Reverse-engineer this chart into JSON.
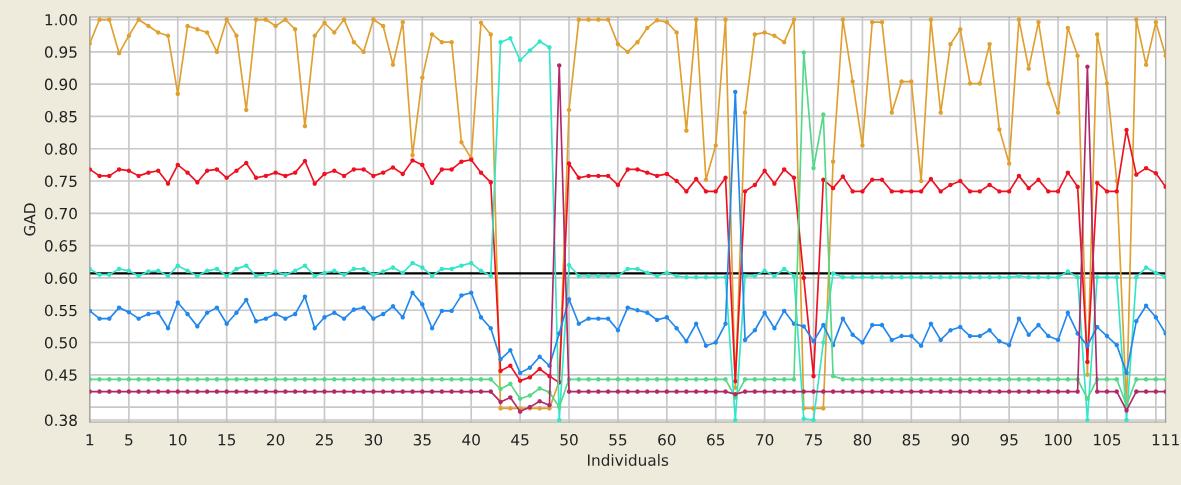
{
  "chart_data": {
    "type": "line",
    "xlabel": "Individuals",
    "ylabel": "GAD",
    "x": [
      1,
      2,
      3,
      4,
      5,
      6,
      7,
      8,
      9,
      10,
      11,
      12,
      13,
      14,
      15,
      16,
      17,
      18,
      19,
      20,
      21,
      22,
      23,
      24,
      25,
      26,
      27,
      28,
      29,
      30,
      31,
      32,
      33,
      34,
      35,
      36,
      37,
      38,
      39,
      40,
      41,
      42,
      43,
      44,
      45,
      46,
      47,
      48,
      49,
      50,
      51,
      52,
      53,
      54,
      55,
      56,
      57,
      58,
      59,
      60,
      61,
      62,
      63,
      64,
      65,
      66,
      67,
      68,
      69,
      70,
      71,
      72,
      73,
      74,
      75,
      76,
      77,
      78,
      79,
      80,
      81,
      82,
      83,
      84,
      85,
      86,
      87,
      88,
      89,
      90,
      91,
      92,
      93,
      94,
      95,
      96,
      97,
      98,
      99,
      100,
      101,
      102,
      103,
      104,
      105,
      106,
      107,
      108,
      109,
      110,
      111
    ],
    "series": [
      {
        "color": "#e0a030",
        "values": [
          0.963,
          1.0,
          1.0,
          0.948,
          0.975,
          1.0,
          0.99,
          0.98,
          0.975,
          0.885,
          0.99,
          0.985,
          0.98,
          0.95,
          1.0,
          0.975,
          0.86,
          1.0,
          1.0,
          0.99,
          1.0,
          0.985,
          0.835,
          0.975,
          0.995,
          0.98,
          1.0,
          0.965,
          0.95,
          1.0,
          0.99,
          0.93,
          0.996,
          0.79,
          0.91,
          0.977,
          0.965,
          0.965,
          0.81,
          0.785,
          0.995,
          0.977,
          0.398,
          0.398,
          0.398,
          0.398,
          0.398,
          0.398,
          0.44,
          0.86,
          1.0,
          1.0,
          1.0,
          1.0,
          0.962,
          0.95,
          0.965,
          0.987,
          0.999,
          0.996,
          0.98,
          0.828,
          1.0,
          0.752,
          0.805,
          1.0,
          0.43,
          0.856,
          0.977,
          0.98,
          0.975,
          0.965,
          1.0,
          0.398,
          0.398,
          0.398,
          0.78,
          1.0,
          0.904,
          0.805,
          0.996,
          0.996,
          0.856,
          0.904,
          0.904,
          0.75,
          1.0,
          0.856,
          0.962,
          0.985,
          0.901,
          0.901,
          0.962,
          0.83,
          0.777,
          1.0,
          0.924,
          0.996,
          0.901,
          0.856,
          0.987,
          0.944,
          0.45,
          0.977,
          0.901,
          0.75,
          0.4,
          1.0,
          0.93,
          0.996,
          0.944
        ]
      },
      {
        "color": "#ee1122",
        "values": [
          0.768,
          0.758,
          0.758,
          0.768,
          0.766,
          0.758,
          0.763,
          0.766,
          0.746,
          0.775,
          0.763,
          0.748,
          0.766,
          0.768,
          0.755,
          0.766,
          0.778,
          0.755,
          0.758,
          0.763,
          0.758,
          0.763,
          0.781,
          0.746,
          0.761,
          0.766,
          0.758,
          0.768,
          0.768,
          0.758,
          0.763,
          0.771,
          0.761,
          0.782,
          0.775,
          0.747,
          0.768,
          0.768,
          0.78,
          0.783,
          0.763,
          0.748,
          0.456,
          0.464,
          0.441,
          0.446,
          0.459,
          0.448,
          0.438,
          0.777,
          0.755,
          0.758,
          0.758,
          0.758,
          0.744,
          0.768,
          0.768,
          0.763,
          0.758,
          0.761,
          0.75,
          0.734,
          0.753,
          0.734,
          0.734,
          0.755,
          0.44,
          0.734,
          0.744,
          0.766,
          0.746,
          0.768,
          0.755,
          0.6,
          0.448,
          0.752,
          0.739,
          0.757,
          0.734,
          0.734,
          0.752,
          0.752,
          0.734,
          0.734,
          0.734,
          0.734,
          0.753,
          0.734,
          0.744,
          0.75,
          0.734,
          0.734,
          0.744,
          0.734,
          0.734,
          0.758,
          0.739,
          0.752,
          0.734,
          0.734,
          0.763,
          0.741,
          0.47,
          0.747,
          0.734,
          0.734,
          0.829,
          0.76,
          0.77,
          0.762,
          0.741
        ]
      },
      {
        "color": "#33e6c8",
        "values": [
          0.614,
          0.605,
          0.605,
          0.614,
          0.611,
          0.603,
          0.61,
          0.611,
          0.603,
          0.619,
          0.611,
          0.603,
          0.611,
          0.614,
          0.603,
          0.614,
          0.619,
          0.603,
          0.605,
          0.61,
          0.605,
          0.611,
          0.619,
          0.603,
          0.608,
          0.611,
          0.605,
          0.614,
          0.614,
          0.605,
          0.61,
          0.616,
          0.608,
          0.623,
          0.616,
          0.603,
          0.614,
          0.614,
          0.619,
          0.623,
          0.611,
          0.603,
          0.965,
          0.971,
          0.937,
          0.952,
          0.966,
          0.957,
          0.38,
          0.62,
          0.603,
          0.603,
          0.603,
          0.603,
          0.603,
          0.614,
          0.614,
          0.608,
          0.603,
          0.608,
          0.603,
          0.601,
          0.601,
          0.601,
          0.601,
          0.601,
          0.38,
          0.603,
          0.603,
          0.611,
          0.603,
          0.614,
          0.603,
          0.382,
          0.38,
          0.5,
          0.607,
          0.601,
          0.601,
          0.601,
          0.601,
          0.601,
          0.601,
          0.601,
          0.601,
          0.601,
          0.601,
          0.601,
          0.601,
          0.601,
          0.601,
          0.601,
          0.601,
          0.601,
          0.601,
          0.603,
          0.601,
          0.601,
          0.601,
          0.601,
          0.61,
          0.601,
          0.38,
          0.601,
          0.601,
          0.601,
          0.38,
          0.601,
          0.616,
          0.608,
          0.601
        ]
      },
      {
        "color": "#2288ee",
        "values": [
          0.549,
          0.537,
          0.537,
          0.554,
          0.547,
          0.537,
          0.544,
          0.546,
          0.522,
          0.562,
          0.544,
          0.525,
          0.546,
          0.554,
          0.529,
          0.546,
          0.566,
          0.533,
          0.537,
          0.544,
          0.537,
          0.544,
          0.571,
          0.522,
          0.539,
          0.546,
          0.537,
          0.551,
          0.554,
          0.537,
          0.544,
          0.556,
          0.539,
          0.577,
          0.559,
          0.522,
          0.549,
          0.549,
          0.573,
          0.577,
          0.539,
          0.522,
          0.474,
          0.488,
          0.453,
          0.461,
          0.478,
          0.464,
          0.514,
          0.567,
          0.529,
          0.537,
          0.537,
          0.537,
          0.519,
          0.554,
          0.55,
          0.546,
          0.535,
          0.539,
          0.522,
          0.502,
          0.529,
          0.495,
          0.5,
          0.529,
          0.888,
          0.504,
          0.519,
          0.546,
          0.522,
          0.549,
          0.529,
          0.525,
          0.502,
          0.527,
          0.496,
          0.537,
          0.512,
          0.5,
          0.527,
          0.527,
          0.504,
          0.51,
          0.51,
          0.495,
          0.529,
          0.504,
          0.519,
          0.524,
          0.51,
          0.51,
          0.519,
          0.502,
          0.496,
          0.537,
          0.512,
          0.527,
          0.51,
          0.504,
          0.546,
          0.514,
          0.495,
          0.524,
          0.51,
          0.496,
          0.453,
          0.533,
          0.557,
          0.539,
          0.514
        ]
      },
      {
        "color": "#55d888",
        "values": [
          0.443,
          0.443,
          0.443,
          0.443,
          0.443,
          0.443,
          0.443,
          0.443,
          0.443,
          0.443,
          0.443,
          0.443,
          0.443,
          0.443,
          0.443,
          0.443,
          0.443,
          0.443,
          0.443,
          0.443,
          0.443,
          0.443,
          0.443,
          0.443,
          0.443,
          0.443,
          0.443,
          0.443,
          0.443,
          0.443,
          0.443,
          0.443,
          0.443,
          0.443,
          0.443,
          0.443,
          0.443,
          0.443,
          0.443,
          0.443,
          0.443,
          0.443,
          0.428,
          0.436,
          0.413,
          0.418,
          0.429,
          0.423,
          0.4,
          0.443,
          0.443,
          0.443,
          0.443,
          0.443,
          0.443,
          0.443,
          0.443,
          0.443,
          0.443,
          0.443,
          0.443,
          0.443,
          0.443,
          0.443,
          0.443,
          0.443,
          0.415,
          0.443,
          0.443,
          0.443,
          0.443,
          0.443,
          0.443,
          0.949,
          0.77,
          0.853,
          0.448,
          0.443,
          0.443,
          0.443,
          0.443,
          0.443,
          0.443,
          0.443,
          0.443,
          0.443,
          0.443,
          0.443,
          0.443,
          0.443,
          0.443,
          0.443,
          0.443,
          0.443,
          0.443,
          0.443,
          0.443,
          0.443,
          0.443,
          0.443,
          0.443,
          0.443,
          0.413,
          0.443,
          0.443,
          0.443,
          0.403,
          0.443,
          0.443,
          0.443,
          0.443
        ]
      },
      {
        "color": "#b02a6a",
        "values": [
          0.424,
          0.424,
          0.424,
          0.424,
          0.424,
          0.424,
          0.424,
          0.424,
          0.424,
          0.424,
          0.424,
          0.424,
          0.424,
          0.424,
          0.424,
          0.424,
          0.424,
          0.424,
          0.424,
          0.424,
          0.424,
          0.424,
          0.424,
          0.424,
          0.424,
          0.424,
          0.424,
          0.424,
          0.424,
          0.424,
          0.424,
          0.424,
          0.424,
          0.424,
          0.424,
          0.424,
          0.424,
          0.424,
          0.424,
          0.424,
          0.424,
          0.424,
          0.408,
          0.415,
          0.393,
          0.4,
          0.409,
          0.403,
          0.929,
          0.424,
          0.424,
          0.424,
          0.424,
          0.424,
          0.424,
          0.424,
          0.424,
          0.424,
          0.424,
          0.424,
          0.424,
          0.424,
          0.424,
          0.424,
          0.424,
          0.424,
          0.42,
          0.424,
          0.424,
          0.424,
          0.424,
          0.424,
          0.424,
          0.424,
          0.424,
          0.424,
          0.424,
          0.424,
          0.424,
          0.424,
          0.424,
          0.424,
          0.424,
          0.424,
          0.424,
          0.424,
          0.424,
          0.424,
          0.424,
          0.424,
          0.424,
          0.424,
          0.424,
          0.424,
          0.424,
          0.424,
          0.424,
          0.424,
          0.424,
          0.424,
          0.424,
          0.424,
          0.927,
          0.424,
          0.424,
          0.424,
          0.395,
          0.424,
          0.424,
          0.424,
          0.424
        ]
      }
    ],
    "ref_lines": [
      {
        "axis": "y",
        "value": 0.607,
        "color": "#000000"
      }
    ],
    "xlim": [
      1,
      111
    ],
    "xticks": [
      1,
      5,
      10,
      15,
      20,
      25,
      30,
      35,
      40,
      45,
      50,
      55,
      60,
      65,
      70,
      75,
      80,
      85,
      90,
      95,
      100,
      105,
      {
        "value": 110,
        "label": null
      },
      111
    ],
    "ylim": [
      0.377,
      1.004
    ],
    "yticks": [
      {
        "value": 0.38,
        "label": "0.38"
      },
      {
        "value": 0.4,
        "label": null
      },
      {
        "value": 0.45,
        "label": "0.45"
      },
      {
        "value": 0.5,
        "label": "0.50"
      },
      {
        "value": 0.55,
        "label": "0.55"
      },
      {
        "value": 0.6,
        "label": "0.60"
      },
      {
        "value": 0.65,
        "label": "0.65"
      },
      {
        "value": 0.7,
        "label": "0.70"
      },
      {
        "value": 0.75,
        "label": "0.75"
      },
      {
        "value": 0.8,
        "label": "0.80"
      },
      {
        "value": 0.85,
        "label": "0.85"
      },
      {
        "value": 0.9,
        "label": "0.90"
      },
      {
        "value": 0.95,
        "label": "0.95"
      },
      {
        "value": 1.0,
        "label": "1.00"
      }
    ],
    "grid": true,
    "marker": "circle",
    "line_style": "solid"
  }
}
